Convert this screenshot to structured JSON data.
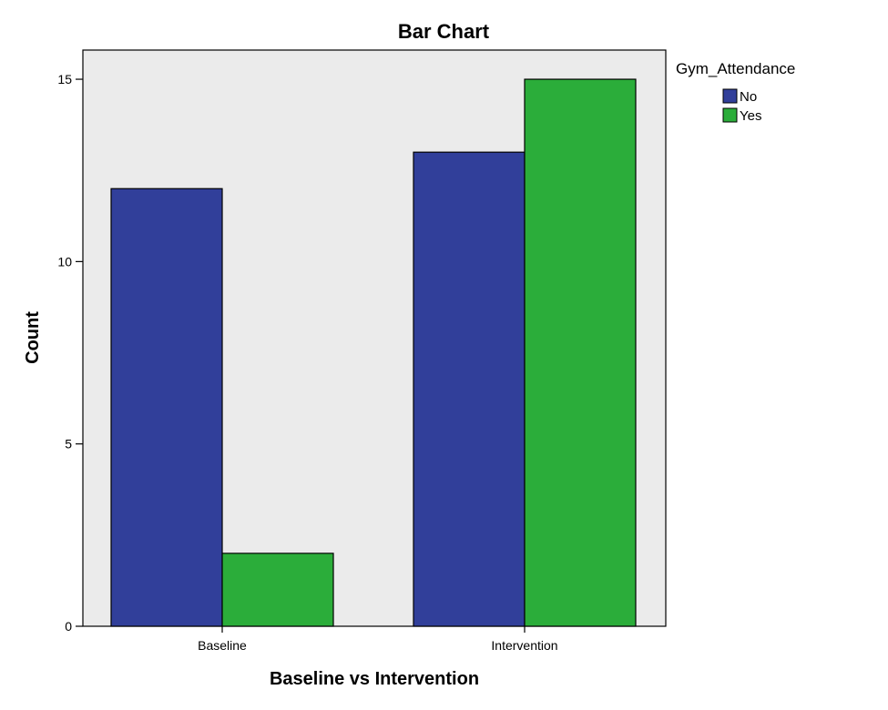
{
  "chart_data": {
    "type": "bar",
    "title": "Bar Chart",
    "xlabel": "Baseline vs Intervention",
    "ylabel": "Count",
    "categories": [
      "Baseline",
      "Intervention"
    ],
    "series": [
      {
        "name": "No",
        "values": [
          12,
          13
        ]
      },
      {
        "name": "Yes",
        "values": [
          2,
          15
        ]
      }
    ],
    "ylim": [
      0,
      15.8
    ],
    "yticks": [
      0,
      5,
      10,
      15
    ],
    "grid": false,
    "legend": {
      "title": "Gym_Attendance",
      "position": "right-top"
    },
    "colors": {
      "No": "#313f9a",
      "Yes": "#2bad3a",
      "plot_background": "#ebebeb",
      "bar_outline": "#000000"
    }
  }
}
